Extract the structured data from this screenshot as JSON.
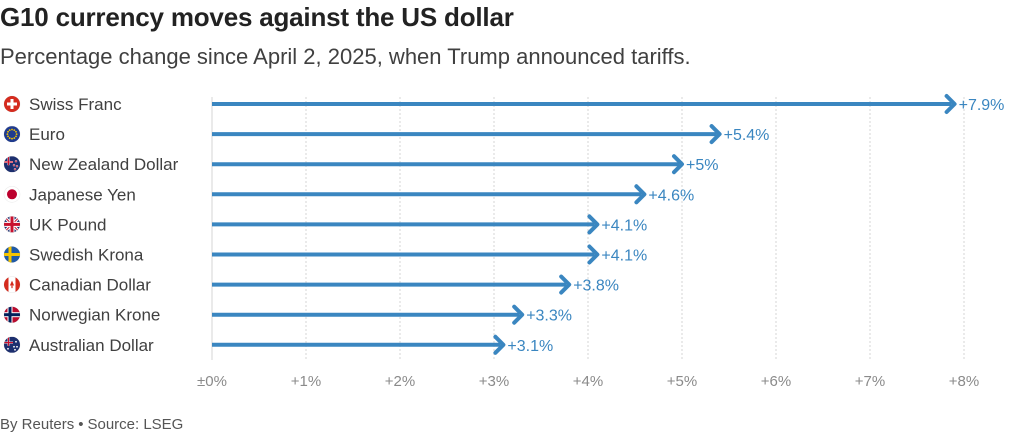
{
  "header": {
    "title": "G10 currency moves against the US dollar",
    "subtitle": "Percentage change since April 2, 2025, when Trump announced tariffs."
  },
  "footer": {
    "byline": "By Reuters",
    "separator": "•",
    "source": "Source: LSEG"
  },
  "colors": {
    "bar": "#3a86c0",
    "grid": "#d5d5d5",
    "axis": "#8a8a8a"
  },
  "chart_data": {
    "type": "bar",
    "orientation": "horizontal",
    "title": "G10 currency moves against the US dollar",
    "subtitle": "Percentage change since April 2, 2025, when Trump announced tariffs.",
    "xlabel": "",
    "ylabel": "",
    "unit": "%",
    "xlim": [
      0,
      8
    ],
    "grid": true,
    "categories": [
      "Swiss Franc",
      "Euro",
      "New Zealand Dollar",
      "Japanese Yen",
      "UK Pound",
      "Swedish Krona",
      "Canadian Dollar",
      "Norwegian Krone",
      "Australian Dollar"
    ],
    "flags": [
      "swiss-flag",
      "eu-flag",
      "new-zealand-flag",
      "japan-flag",
      "uk-flag",
      "sweden-flag",
      "canada-flag",
      "norway-flag",
      "australia-flag"
    ],
    "values": [
      7.9,
      5.4,
      5,
      4.6,
      4.1,
      4.1,
      3.8,
      3.3,
      3.1
    ],
    "value_labels": [
      "+7.9%",
      "+5.4%",
      "+5%",
      "+4.6%",
      "+4.1%",
      "+4.1%",
      "+3.8%",
      "+3.3%",
      "+3.1%"
    ],
    "ticks": [
      0,
      1,
      2,
      3,
      4,
      5,
      6,
      7,
      8
    ],
    "tick_labels": [
      "±0%",
      "+1%",
      "+2%",
      "+3%",
      "+4%",
      "+5%",
      "+6%",
      "+7%",
      "+8%"
    ]
  }
}
